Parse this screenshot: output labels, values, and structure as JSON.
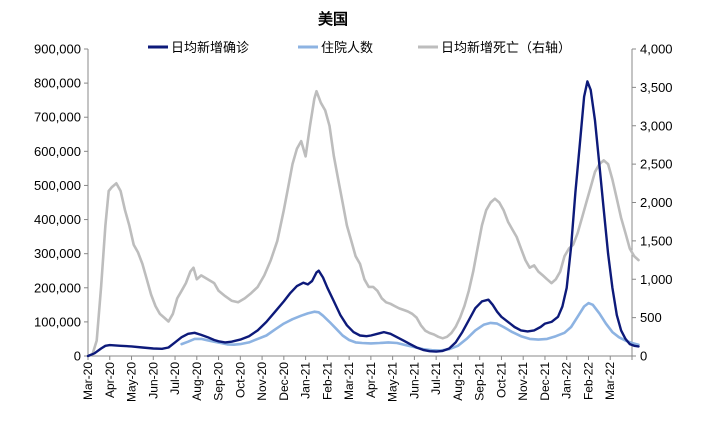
{
  "chart_data": {
    "type": "line",
    "title": "美国",
    "legend_position": "top",
    "grid": false,
    "x_ticks": [
      "Mar-20",
      "Apr-20",
      "May-20",
      "Jun-20",
      "Jul-20",
      "Aug-20",
      "Sep-20",
      "Oct-20",
      "Nov-20",
      "Dec-20",
      "Jan-21",
      "Feb-21",
      "Mar-21",
      "Apr-21",
      "May-21",
      "Jun-21",
      "Jul-21",
      "Aug-21",
      "Sep-21",
      "Oct-21",
      "Nov-21",
      "Dec-21",
      "Jan-22",
      "Feb-22",
      "Mar-22"
    ],
    "y_left": {
      "ticks": [
        "0",
        "100,000",
        "200,000",
        "300,000",
        "400,000",
        "500,000",
        "600,000",
        "700,000",
        "800,000",
        "900,000"
      ],
      "range": [
        0,
        900000
      ]
    },
    "y_right": {
      "ticks": [
        "0",
        "500",
        "1,000",
        "1,500",
        "2,000",
        "2,500",
        "3,000",
        "3,500",
        "4,000"
      ],
      "range": [
        0,
        4000
      ]
    },
    "series": [
      {
        "name": "日均新增确诊",
        "axis": "left",
        "color": "#0d1a7a",
        "points": [
          [
            0,
            0
          ],
          [
            0.3,
            8000
          ],
          [
            0.6,
            22000
          ],
          [
            0.8,
            30000
          ],
          [
            1.0,
            32000
          ],
          [
            1.5,
            30000
          ],
          [
            2.0,
            28000
          ],
          [
            2.5,
            25000
          ],
          [
            3.0,
            22000
          ],
          [
            3.4,
            21000
          ],
          [
            3.7,
            25000
          ],
          [
            4.0,
            40000
          ],
          [
            4.3,
            55000
          ],
          [
            4.6,
            65000
          ],
          [
            4.9,
            68000
          ],
          [
            5.2,
            62000
          ],
          [
            5.5,
            55000
          ],
          [
            5.8,
            47000
          ],
          [
            6.0,
            43000
          ],
          [
            6.3,
            40000
          ],
          [
            6.6,
            42000
          ],
          [
            7.0,
            48000
          ],
          [
            7.4,
            58000
          ],
          [
            7.8,
            75000
          ],
          [
            8.2,
            100000
          ],
          [
            8.6,
            130000
          ],
          [
            9.0,
            160000
          ],
          [
            9.3,
            185000
          ],
          [
            9.6,
            205000
          ],
          [
            9.9,
            215000
          ],
          [
            10.1,
            210000
          ],
          [
            10.3,
            220000
          ],
          [
            10.5,
            245000
          ],
          [
            10.6,
            250000
          ],
          [
            10.8,
            230000
          ],
          [
            11.0,
            200000
          ],
          [
            11.3,
            160000
          ],
          [
            11.6,
            120000
          ],
          [
            11.9,
            90000
          ],
          [
            12.2,
            70000
          ],
          [
            12.5,
            60000
          ],
          [
            12.8,
            58000
          ],
          [
            13.0,
            60000
          ],
          [
            13.3,
            65000
          ],
          [
            13.6,
            70000
          ],
          [
            13.9,
            65000
          ],
          [
            14.2,
            55000
          ],
          [
            14.5,
            45000
          ],
          [
            14.8,
            35000
          ],
          [
            15.1,
            25000
          ],
          [
            15.4,
            18000
          ],
          [
            15.7,
            14000
          ],
          [
            16.0,
            13000
          ],
          [
            16.3,
            15000
          ],
          [
            16.6,
            22000
          ],
          [
            16.9,
            40000
          ],
          [
            17.2,
            70000
          ],
          [
            17.5,
            105000
          ],
          [
            17.8,
            140000
          ],
          [
            18.1,
            160000
          ],
          [
            18.4,
            165000
          ],
          [
            18.6,
            150000
          ],
          [
            18.8,
            130000
          ],
          [
            19.0,
            115000
          ],
          [
            19.3,
            100000
          ],
          [
            19.6,
            85000
          ],
          [
            19.9,
            75000
          ],
          [
            20.2,
            72000
          ],
          [
            20.5,
            75000
          ],
          [
            20.8,
            85000
          ],
          [
            21.0,
            95000
          ],
          [
            21.3,
            100000
          ],
          [
            21.6,
            115000
          ],
          [
            21.8,
            145000
          ],
          [
            22.0,
            200000
          ],
          [
            22.2,
            320000
          ],
          [
            22.4,
            480000
          ],
          [
            22.6,
            620000
          ],
          [
            22.8,
            760000
          ],
          [
            22.95,
            805000
          ],
          [
            23.1,
            780000
          ],
          [
            23.3,
            690000
          ],
          [
            23.5,
            560000
          ],
          [
            23.7,
            430000
          ],
          [
            23.9,
            300000
          ],
          [
            24.1,
            200000
          ],
          [
            24.3,
            120000
          ],
          [
            24.5,
            75000
          ],
          [
            24.7,
            50000
          ],
          [
            24.9,
            35000
          ],
          [
            25.1,
            30000
          ],
          [
            25.3,
            28000
          ]
        ]
      },
      {
        "name": "住院人数",
        "axis": "left",
        "color": "#8db3e2",
        "points": [
          [
            4.3,
            35000
          ],
          [
            4.6,
            42000
          ],
          [
            4.9,
            50000
          ],
          [
            5.2,
            50000
          ],
          [
            5.5,
            46000
          ],
          [
            5.8,
            42000
          ],
          [
            6.1,
            38000
          ],
          [
            6.4,
            34000
          ],
          [
            6.7,
            33000
          ],
          [
            7.0,
            35000
          ],
          [
            7.4,
            40000
          ],
          [
            7.8,
            50000
          ],
          [
            8.2,
            60000
          ],
          [
            8.6,
            78000
          ],
          [
            9.0,
            95000
          ],
          [
            9.4,
            108000
          ],
          [
            9.8,
            118000
          ],
          [
            10.1,
            125000
          ],
          [
            10.4,
            130000
          ],
          [
            10.6,
            128000
          ],
          [
            10.8,
            118000
          ],
          [
            11.1,
            100000
          ],
          [
            11.4,
            80000
          ],
          [
            11.7,
            60000
          ],
          [
            12.0,
            47000
          ],
          [
            12.3,
            40000
          ],
          [
            12.6,
            38000
          ],
          [
            13.0,
            37000
          ],
          [
            13.4,
            38000
          ],
          [
            13.8,
            40000
          ],
          [
            14.2,
            38000
          ],
          [
            14.6,
            32000
          ],
          [
            15.0,
            26000
          ],
          [
            15.4,
            20000
          ],
          [
            15.8,
            17000
          ],
          [
            16.2,
            16000
          ],
          [
            16.6,
            20000
          ],
          [
            17.0,
            30000
          ],
          [
            17.4,
            50000
          ],
          [
            17.8,
            75000
          ],
          [
            18.2,
            92000
          ],
          [
            18.5,
            97000
          ],
          [
            18.8,
            95000
          ],
          [
            19.1,
            85000
          ],
          [
            19.5,
            70000
          ],
          [
            19.9,
            58000
          ],
          [
            20.3,
            50000
          ],
          [
            20.7,
            48000
          ],
          [
            21.1,
            50000
          ],
          [
            21.5,
            58000
          ],
          [
            21.9,
            68000
          ],
          [
            22.2,
            85000
          ],
          [
            22.5,
            115000
          ],
          [
            22.8,
            145000
          ],
          [
            23.0,
            155000
          ],
          [
            23.2,
            150000
          ],
          [
            23.5,
            125000
          ],
          [
            23.8,
            95000
          ],
          [
            24.1,
            70000
          ],
          [
            24.4,
            55000
          ],
          [
            24.7,
            45000
          ],
          [
            25.0,
            38000
          ],
          [
            25.3,
            33000
          ]
        ]
      },
      {
        "name": "日均新增死亡（右轴）",
        "axis": "right",
        "color": "#bdbdbd",
        "points": [
          [
            0,
            0
          ],
          [
            0.2,
            20
          ],
          [
            0.4,
            200
          ],
          [
            0.6,
            900
          ],
          [
            0.8,
            1700
          ],
          [
            0.95,
            2150
          ],
          [
            1.1,
            2200
          ],
          [
            1.3,
            2250
          ],
          [
            1.5,
            2150
          ],
          [
            1.7,
            1900
          ],
          [
            1.9,
            1700
          ],
          [
            2.1,
            1450
          ],
          [
            2.3,
            1350
          ],
          [
            2.5,
            1200
          ],
          [
            2.7,
            1000
          ],
          [
            2.9,
            800
          ],
          [
            3.1,
            650
          ],
          [
            3.3,
            550
          ],
          [
            3.5,
            500
          ],
          [
            3.7,
            450
          ],
          [
            3.9,
            550
          ],
          [
            4.1,
            750
          ],
          [
            4.3,
            850
          ],
          [
            4.5,
            950
          ],
          [
            4.7,
            1100
          ],
          [
            4.85,
            1150
          ],
          [
            5.0,
            1000
          ],
          [
            5.2,
            1050
          ],
          [
            5.5,
            1000
          ],
          [
            5.8,
            950
          ],
          [
            6.0,
            850
          ],
          [
            6.3,
            780
          ],
          [
            6.6,
            720
          ],
          [
            6.9,
            700
          ],
          [
            7.2,
            750
          ],
          [
            7.5,
            820
          ],
          [
            7.8,
            900
          ],
          [
            8.1,
            1050
          ],
          [
            8.4,
            1250
          ],
          [
            8.7,
            1500
          ],
          [
            9.0,
            1900
          ],
          [
            9.2,
            2200
          ],
          [
            9.4,
            2500
          ],
          [
            9.6,
            2700
          ],
          [
            9.8,
            2800
          ],
          [
            10.0,
            2600
          ],
          [
            10.2,
            3000
          ],
          [
            10.4,
            3350
          ],
          [
            10.5,
            3450
          ],
          [
            10.7,
            3300
          ],
          [
            10.9,
            3200
          ],
          [
            11.1,
            3000
          ],
          [
            11.3,
            2600
          ],
          [
            11.5,
            2300
          ],
          [
            11.7,
            2000
          ],
          [
            11.9,
            1700
          ],
          [
            12.1,
            1500
          ],
          [
            12.3,
            1300
          ],
          [
            12.5,
            1200
          ],
          [
            12.7,
            1000
          ],
          [
            12.9,
            900
          ],
          [
            13.1,
            900
          ],
          [
            13.3,
            850
          ],
          [
            13.5,
            750
          ],
          [
            13.7,
            700
          ],
          [
            13.9,
            680
          ],
          [
            14.1,
            650
          ],
          [
            14.3,
            620
          ],
          [
            14.5,
            600
          ],
          [
            14.7,
            580
          ],
          [
            14.9,
            550
          ],
          [
            15.1,
            500
          ],
          [
            15.3,
            400
          ],
          [
            15.5,
            330
          ],
          [
            15.7,
            300
          ],
          [
            15.9,
            280
          ],
          [
            16.1,
            250
          ],
          [
            16.3,
            230
          ],
          [
            16.5,
            250
          ],
          [
            16.7,
            300
          ],
          [
            16.9,
            380
          ],
          [
            17.1,
            500
          ],
          [
            17.3,
            650
          ],
          [
            17.5,
            850
          ],
          [
            17.7,
            1100
          ],
          [
            17.9,
            1400
          ],
          [
            18.1,
            1700
          ],
          [
            18.3,
            1900
          ],
          [
            18.5,
            2000
          ],
          [
            18.7,
            2050
          ],
          [
            18.9,
            2000
          ],
          [
            19.1,
            1900
          ],
          [
            19.3,
            1750
          ],
          [
            19.5,
            1650
          ],
          [
            19.7,
            1550
          ],
          [
            19.9,
            1400
          ],
          [
            20.1,
            1250
          ],
          [
            20.3,
            1150
          ],
          [
            20.5,
            1180
          ],
          [
            20.7,
            1100
          ],
          [
            20.9,
            1050
          ],
          [
            21.1,
            1000
          ],
          [
            21.3,
            950
          ],
          [
            21.5,
            1000
          ],
          [
            21.7,
            1100
          ],
          [
            21.9,
            1300
          ],
          [
            22.1,
            1400
          ],
          [
            22.3,
            1450
          ],
          [
            22.5,
            1600
          ],
          [
            22.7,
            1800
          ],
          [
            22.9,
            2000
          ],
          [
            23.1,
            2200
          ],
          [
            23.3,
            2400
          ],
          [
            23.5,
            2500
          ],
          [
            23.7,
            2550
          ],
          [
            23.9,
            2500
          ],
          [
            24.1,
            2300
          ],
          [
            24.3,
            2050
          ],
          [
            24.5,
            1800
          ],
          [
            24.7,
            1600
          ],
          [
            24.9,
            1400
          ],
          [
            25.1,
            1300
          ],
          [
            25.3,
            1250
          ]
        ]
      }
    ]
  }
}
